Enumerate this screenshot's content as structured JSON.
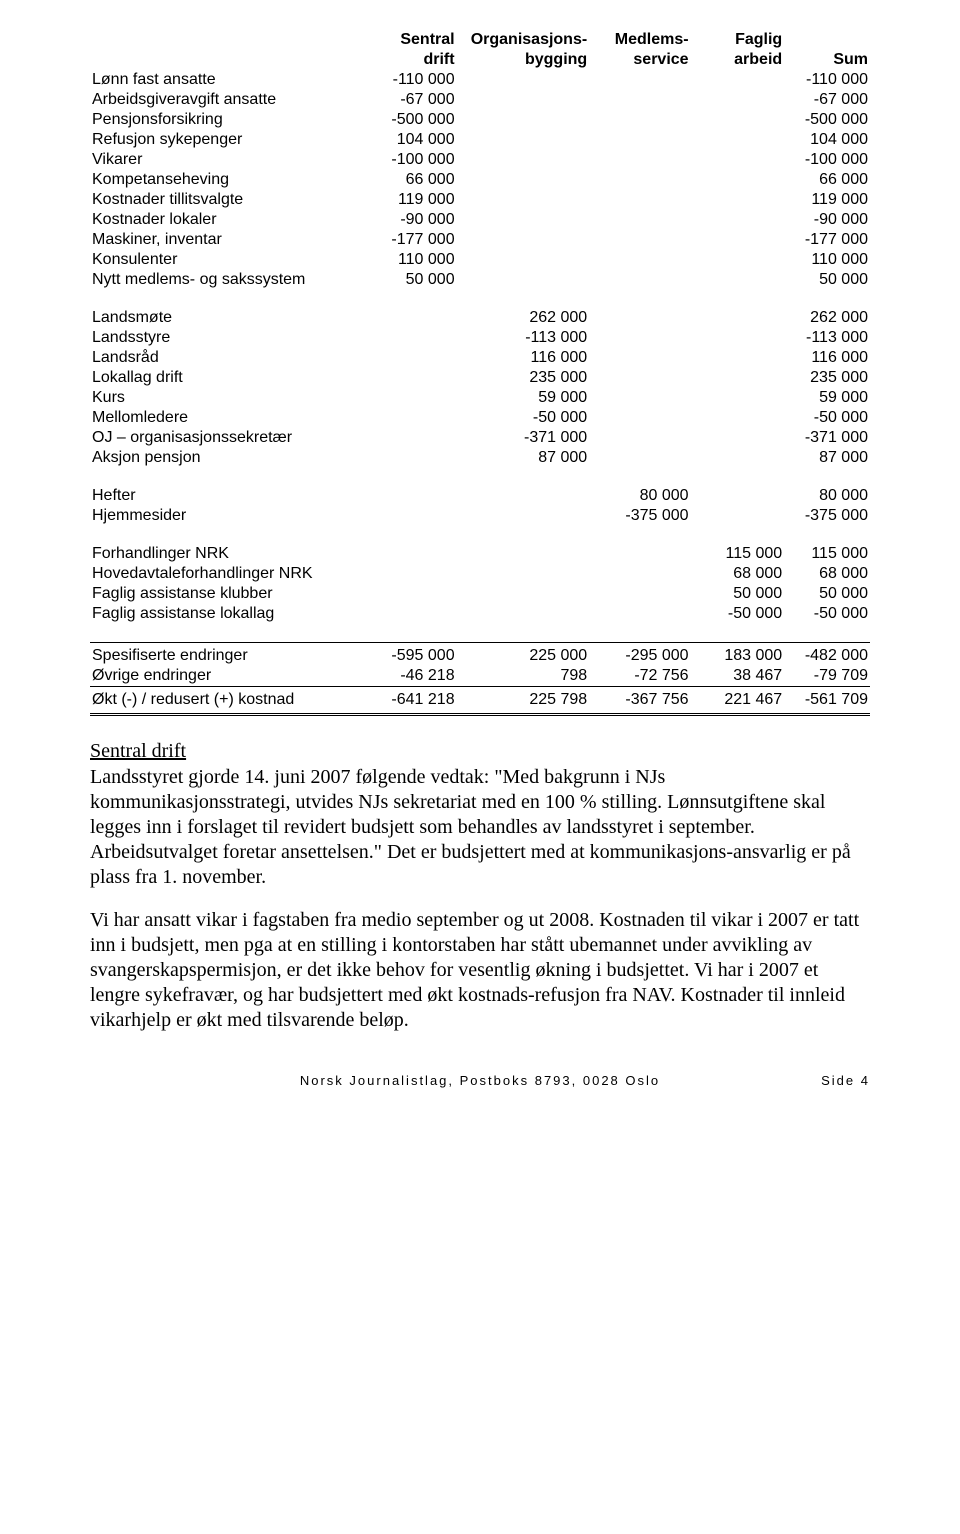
{
  "headers": {
    "col1_top": "Sentral",
    "col1_bot": "drift",
    "col2_top": "Organisasjons-",
    "col2_bot": "bygging",
    "col3_top": "Medlems-",
    "col3_bot": "service",
    "col4_top": "Faglig",
    "col4_bot": "arbeid",
    "col5": "Sum"
  },
  "group1": {
    "rows": [
      {
        "label": "Lønn fast ansatte",
        "c1": "-110 000",
        "c2": "",
        "c3": "",
        "c4": "",
        "sum": "-110 000"
      },
      {
        "label": "Arbeidsgiveravgift ansatte",
        "c1": "-67 000",
        "c2": "",
        "c3": "",
        "c4": "",
        "sum": "-67 000"
      },
      {
        "label": "Pensjonsforsikring",
        "c1": "-500 000",
        "c2": "",
        "c3": "",
        "c4": "",
        "sum": "-500 000"
      },
      {
        "label": "Refusjon sykepenger",
        "c1": "104 000",
        "c2": "",
        "c3": "",
        "c4": "",
        "sum": "104 000"
      },
      {
        "label": "Vikarer",
        "c1": "-100 000",
        "c2": "",
        "c3": "",
        "c4": "",
        "sum": "-100 000"
      },
      {
        "label": "Kompetanseheving",
        "c1": "66 000",
        "c2": "",
        "c3": "",
        "c4": "",
        "sum": "66 000"
      },
      {
        "label": "Kostnader tillitsvalgte",
        "c1": "119 000",
        "c2": "",
        "c3": "",
        "c4": "",
        "sum": "119 000"
      },
      {
        "label": "Kostnader lokaler",
        "c1": "-90 000",
        "c2": "",
        "c3": "",
        "c4": "",
        "sum": "-90 000"
      },
      {
        "label": "Maskiner, inventar",
        "c1": "-177 000",
        "c2": "",
        "c3": "",
        "c4": "",
        "sum": "-177 000"
      },
      {
        "label": "Konsulenter",
        "c1": "110 000",
        "c2": "",
        "c3": "",
        "c4": "",
        "sum": "110 000"
      },
      {
        "label": "Nytt medlems- og sakssystem",
        "c1": "50 000",
        "c2": "",
        "c3": "",
        "c4": "",
        "sum": "50 000"
      }
    ]
  },
  "group2": {
    "rows": [
      {
        "label": "Landsmøte",
        "c1": "",
        "c2": "262 000",
        "c3": "",
        "c4": "",
        "sum": "262 000"
      },
      {
        "label": "Landsstyre",
        "c1": "",
        "c2": "-113 000",
        "c3": "",
        "c4": "",
        "sum": "-113 000"
      },
      {
        "label": "Landsråd",
        "c1": "",
        "c2": "116 000",
        "c3": "",
        "c4": "",
        "sum": "116 000"
      },
      {
        "label": "Lokallag drift",
        "c1": "",
        "c2": "235 000",
        "c3": "",
        "c4": "",
        "sum": "235 000"
      },
      {
        "label": "Kurs",
        "c1": "",
        "c2": "59 000",
        "c3": "",
        "c4": "",
        "sum": "59 000"
      },
      {
        "label": "Mellomledere",
        "c1": "",
        "c2": "-50 000",
        "c3": "",
        "c4": "",
        "sum": "-50 000"
      },
      {
        "label": "OJ – organisasjonssekretær",
        "c1": "",
        "c2": "-371 000",
        "c3": "",
        "c4": "",
        "sum": "-371 000"
      },
      {
        "label": "Aksjon pensjon",
        "c1": "",
        "c2": "87 000",
        "c3": "",
        "c4": "",
        "sum": "87 000"
      }
    ]
  },
  "group3": {
    "rows": [
      {
        "label": "Hefter",
        "c1": "",
        "c2": "",
        "c3": "80 000",
        "c4": "",
        "sum": "80 000"
      },
      {
        "label": "Hjemmesider",
        "c1": "",
        "c2": "",
        "c3": "-375 000",
        "c4": "",
        "sum": "-375 000"
      }
    ]
  },
  "group4": {
    "rows": [
      {
        "label": "Forhandlinger NRK",
        "c1": "",
        "c2": "",
        "c3": "",
        "c4": "115 000",
        "sum": "115 000"
      },
      {
        "label": "Hovedavtaleforhandlinger NRK",
        "c1": "",
        "c2": "",
        "c3": "",
        "c4": "68 000",
        "sum": "68 000"
      },
      {
        "label": "Faglig assistanse klubber",
        "c1": "",
        "c2": "",
        "c3": "",
        "c4": "50 000",
        "sum": "50 000"
      },
      {
        "label": "Faglig assistanse lokallag",
        "c1": "",
        "c2": "",
        "c3": "",
        "c4": "-50 000",
        "sum": "-50 000"
      }
    ]
  },
  "totals": {
    "spesifiserte": {
      "label": "Spesifiserte endringer",
      "c1": "-595 000",
      "c2": "225 000",
      "c3": "-295 000",
      "c4": "183 000",
      "sum": "-482 000"
    },
    "ovrige": {
      "label": "Øvrige endringer",
      "c1": "-46 218",
      "c2": "798",
      "c3": "-72 756",
      "c4": "38 467",
      "sum": "-79 709"
    },
    "okt": {
      "label": "Økt (-) / redusert (+) kostnad",
      "c1": "-641 218",
      "c2": "225 798",
      "c3": "-367 756",
      "c4": "221 467",
      "sum": "-561 709"
    }
  },
  "section_heading": "Sentral drift",
  "paragraphs": {
    "p1": "Landsstyret gjorde 14. juni 2007 følgende vedtak: \"Med bakgrunn i NJs kommunikasjonsstrategi, utvides NJs sekretariat med en 100 % stilling. Lønnsutgiftene skal legges inn i forslaget til revidert budsjett som behandles av landsstyret i september. Arbeidsutvalget foretar ansettelsen.\" Det er budsjettert med at kommunikasjons-ansvarlig er på plass fra 1. november.",
    "p2": "Vi har ansatt vikar i fagstaben fra medio september og ut 2008. Kostnaden til vikar i 2007 er tatt inn i budsjett, men pga at en stilling i kontorstaben har stått ubemannet under avvikling av svangerskapspermisjon, er det ikke behov for vesentlig økning i budsjettet. Vi har i 2007 et lengre sykefravær, og har budsjettert med økt kostnads-refusjon fra NAV. Kostnader til innleid vikarhjelp er økt med tilsvarende beløp."
  },
  "footer": {
    "main": "Norsk Journalistlag, Postboks 8793, 0028 Oslo",
    "page": "Side 4"
  }
}
